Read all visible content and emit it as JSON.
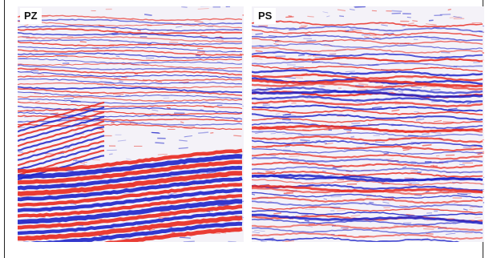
{
  "panels": [
    {
      "label": "PZ"
    },
    {
      "label": "PS"
    }
  ],
  "colors": {
    "positive": "#e8281e",
    "negative": "#1d22c8",
    "background": "#f4f2f8"
  }
}
